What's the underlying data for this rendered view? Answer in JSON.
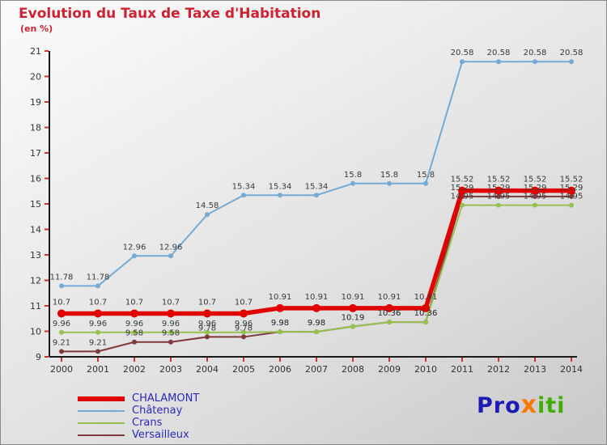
{
  "header": {
    "title": "Evolution du Taux de Taxe d'Habitation",
    "subtitle": "(en %)"
  },
  "chart_data": {
    "type": "line",
    "title": "Evolution du Taux de Taxe d'Habitation",
    "ylabel": "en %",
    "xlabel": "",
    "ylim": [
      9,
      21
    ],
    "ytick_step": 1,
    "grid": false,
    "legend_position": "bottom-left",
    "x": [
      2000,
      2001,
      2002,
      2003,
      2004,
      2005,
      2006,
      2007,
      2008,
      2009,
      2010,
      2011,
      2012,
      2013,
      2014
    ],
    "series": [
      {
        "name": "CHALAMONT",
        "color": "#e10000",
        "thick": true,
        "values": [
          10.7,
          10.7,
          10.7,
          10.7,
          10.7,
          10.7,
          10.91,
          10.91,
          10.91,
          10.91,
          10.91,
          15.52,
          15.52,
          15.52,
          15.52
        ]
      },
      {
        "name": "Châtenay",
        "color": "#74aad4",
        "thick": false,
        "values": [
          11.78,
          11.78,
          12.96,
          12.96,
          14.58,
          15.34,
          15.34,
          15.34,
          15.8,
          15.8,
          15.8,
          20.58,
          20.58,
          20.58,
          20.58
        ]
      },
      {
        "name": "Crans",
        "color": "#96c050",
        "thick": false,
        "values": [
          9.96,
          9.96,
          9.96,
          9.96,
          9.96,
          9.96,
          9.98,
          9.98,
          10.19,
          10.36,
          10.36,
          14.95,
          14.95,
          14.95,
          14.95
        ]
      },
      {
        "name": "Versailleux",
        "color": "#7e3a3a",
        "thick": false,
        "values": [
          9.21,
          9.21,
          9.58,
          9.58,
          9.78,
          9.78,
          9.98,
          9.98,
          10.19,
          10.36,
          10.36,
          15.29,
          15.29,
          15.29,
          15.29
        ]
      }
    ],
    "axis_color": "#1a1a1a",
    "tick_color": "#cc3333",
    "value_label_color": "#3a3a3a",
    "axis_text_color": "#333333"
  },
  "logo": {
    "pro": "Pro",
    "x": "x",
    "iti": "iti"
  }
}
